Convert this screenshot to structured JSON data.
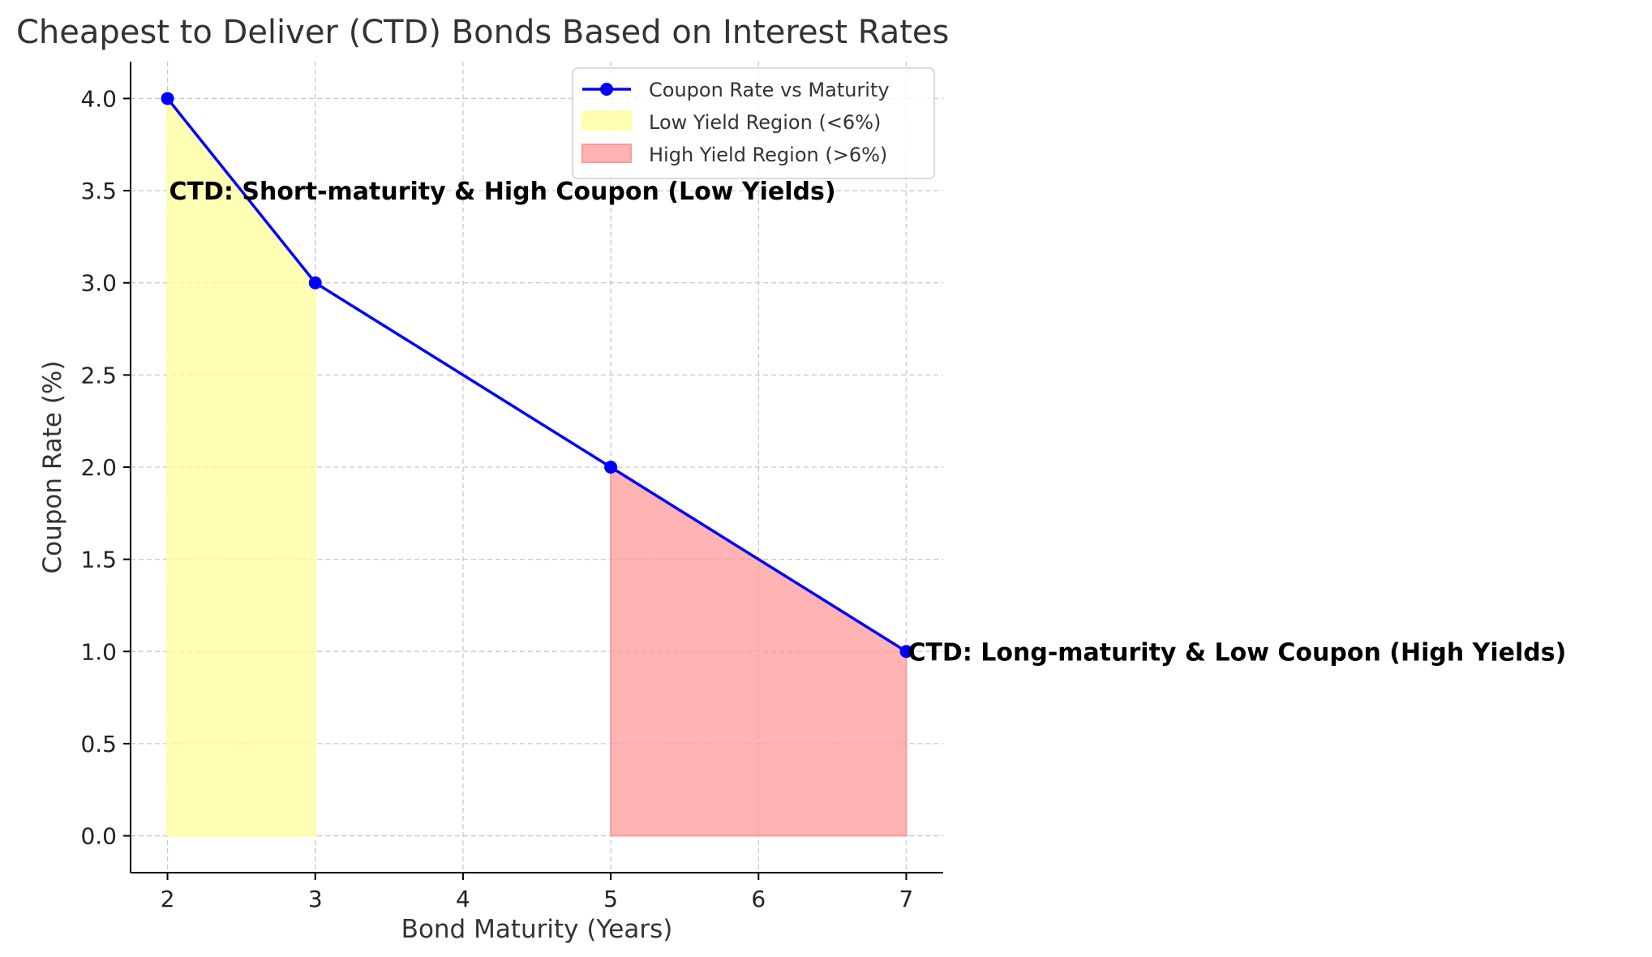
{
  "chart_data": {
    "type": "line",
    "title": "Cheapest to Deliver (CTD) Bonds Based on Interest Rates",
    "xlabel": "Bond Maturity (Years)",
    "ylabel": "Coupon Rate (%)",
    "xlim": [
      1.75,
      7.25
    ],
    "ylim": [
      -0.2,
      4.2
    ],
    "xticks": [
      2,
      3,
      4,
      5,
      6,
      7
    ],
    "yticks": [
      0.0,
      0.5,
      1.0,
      1.5,
      2.0,
      2.5,
      3.0,
      3.5,
      4.0
    ],
    "grid": true,
    "legend_position": "top-right",
    "series": [
      {
        "name": "Coupon Rate vs Maturity",
        "color": "#0000ff",
        "marker": "circle",
        "x": [
          2,
          3,
          5,
          7
        ],
        "y": [
          4,
          3,
          2,
          1
        ]
      }
    ],
    "regions": [
      {
        "name": "Low Yield Region (<6%)",
        "color": "#ffff99",
        "x": [
          2,
          3
        ],
        "y": [
          4,
          3
        ]
      },
      {
        "name": "High Yield Region (>6%)",
        "color": "#ff9999",
        "x": [
          5,
          7
        ],
        "y": [
          2,
          1
        ]
      }
    ],
    "annotations": [
      {
        "text": "CTD: Short-maturity & High Coupon (Low Yields)",
        "x": 2,
        "y": 3.5
      },
      {
        "text": "CTD: Long-maturity & Low Coupon (High Yields)",
        "x": 7,
        "y": 1
      }
    ]
  }
}
